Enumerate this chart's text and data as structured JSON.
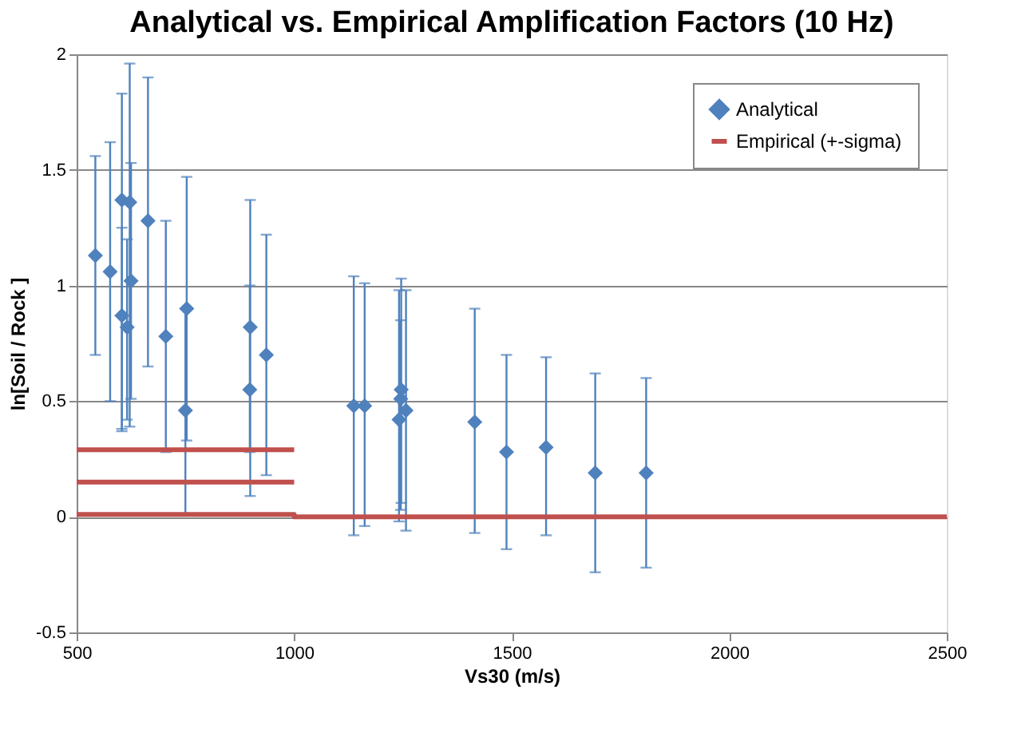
{
  "chart_data": {
    "type": "scatter",
    "title": "Analytical vs. Empirical Amplification Factors (10 Hz)",
    "xlabel": "Vs30 (m/s)",
    "ylabel": "ln[Soil / Rock ]",
    "xlim": [
      500,
      2500
    ],
    "xticks": [
      500,
      1000,
      1500,
      2000,
      2500
    ],
    "ylim": [
      -0.5,
      2
    ],
    "yticks": [
      -0.5,
      0,
      0.5,
      1,
      1.5,
      2
    ],
    "grid": "y",
    "legend": "top right",
    "series": [
      {
        "name": "Analytical",
        "marker": "diamond",
        "color": "#4f81bd",
        "x": [
          543,
          577,
          604,
          622,
          604,
          616,
          625,
          664,
          705,
          753,
          750,
          899,
          898,
          936,
          1137,
          1162,
          1246,
          1245,
          1241,
          1257,
          1415,
          1488,
          1579,
          1692,
          1809
        ],
        "values": [
          1.13,
          1.06,
          1.37,
          1.36,
          0.87,
          0.82,
          1.02,
          1.28,
          0.78,
          0.9,
          0.46,
          0.82,
          0.55,
          0.7,
          0.48,
          0.48,
          0.55,
          0.51,
          0.42,
          0.46,
          0.41,
          0.28,
          0.3,
          0.19,
          0.19
        ],
        "errors": [
          [
            0.7,
            1.56
          ],
          [
            0.5,
            1.62
          ],
          [
            0.37,
            1.83
          ],
          [
            0.39,
            1.96
          ],
          [
            0.38,
            1.25
          ],
          [
            0.42,
            1.2
          ],
          [
            0.51,
            1.53
          ],
          [
            0.65,
            1.9
          ],
          [
            0.28,
            1.28
          ],
          [
            0.33,
            1.47
          ],
          [
            0.01,
            0.9
          ],
          [
            0.09,
            1.37
          ],
          [
            0.28,
            1.0
          ],
          [
            0.18,
            1.22
          ],
          [
            -0.08,
            1.04
          ],
          [
            -0.04,
            1.01
          ],
          [
            0.06,
            1.03
          ],
          [
            0.03,
            0.85
          ],
          [
            -0.02,
            0.98
          ],
          [
            -0.06,
            0.98
          ],
          [
            -0.07,
            0.9
          ],
          [
            -0.14,
            0.7
          ],
          [
            -0.08,
            0.69
          ],
          [
            -0.24,
            0.62
          ],
          [
            -0.22,
            0.6
          ]
        ]
      },
      {
        "name": "Empirical (+-sigma)",
        "type": "line",
        "line_style": "solid",
        "color": "#c0504d",
        "x": [
          500,
          1000,
          1000,
          2500
        ],
        "values": [
          0.01,
          0.01,
          0,
          0
        ]
      },
      {
        "type": "line",
        "line_style": "solid",
        "color": "#c0504d",
        "x": [
          500,
          1000
        ],
        "values": [
          0.15,
          0.15
        ]
      },
      {
        "type": "line",
        "line_style": "solid",
        "color": "#c0504d",
        "x": [
          500,
          1000
        ],
        "values": [
          0.29,
          0.29
        ]
      }
    ]
  }
}
